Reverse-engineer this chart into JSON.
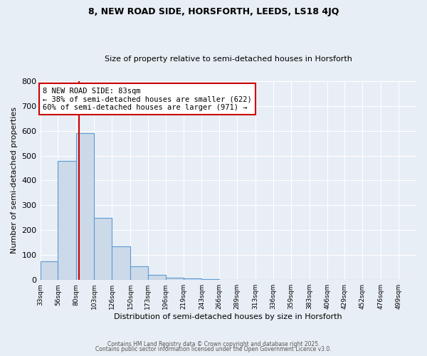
{
  "title": "8, NEW ROAD SIDE, HORSFORTH, LEEDS, LS18 4JQ",
  "subtitle": "Size of property relative to semi-detached houses in Horsforth",
  "xlabel": "Distribution of semi-detached houses by size in Horsforth",
  "ylabel": "Number of semi-detached properties",
  "bar_edges": [
    33,
    56,
    80,
    103,
    126,
    150,
    173,
    196,
    219,
    243,
    266,
    289,
    313,
    336,
    359,
    383,
    406,
    429,
    452,
    476,
    499
  ],
  "bar_heights": [
    75,
    480,
    590,
    250,
    135,
    55,
    20,
    8,
    5,
    3,
    2,
    2,
    1,
    1,
    1,
    1,
    0,
    0,
    0,
    0
  ],
  "bar_color": "#ccd9e8",
  "bar_edgecolor": "#5b9bd5",
  "red_line_x": 83,
  "annotation_title": "8 NEW ROAD SIDE: 83sqm",
  "annotation_line1": "← 38% of semi-detached houses are smaller (622)",
  "annotation_line2": "60% of semi-detached houses are larger (971) →",
  "annotation_box_color": "#ffffff",
  "annotation_box_edgecolor": "#cc0000",
  "red_line_color": "#cc0000",
  "ylim": [
    0,
    800
  ],
  "yticks": [
    0,
    100,
    200,
    300,
    400,
    500,
    600,
    700,
    800
  ],
  "bg_color": "#e8eef5",
  "grid_color": "#ffffff",
  "footer1": "Contains HM Land Registry data © Crown copyright and database right 2025.",
  "footer2": "Contains public sector information licensed under the Open Government Licence v3.0."
}
